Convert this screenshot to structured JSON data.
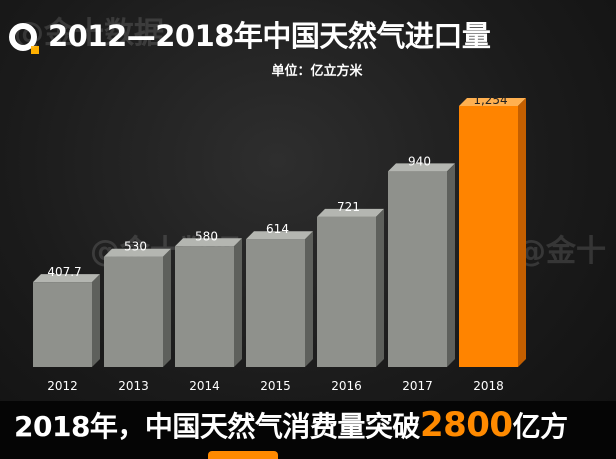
{
  "header": {
    "title": "2012—2018年中国天然气进口量",
    "unit": "单位：亿立方米"
  },
  "watermarks": [
    "@金十数据",
    "@金十数据",
    "@金十"
  ],
  "caption": {
    "prefix": "2018年，中国天然气消费量突破",
    "highlight": "2800",
    "suffix": "亿方"
  },
  "colors": {
    "bar_gray": "#8f918c",
    "bar_highlight": "#ff8400",
    "caption_highlight": "#ff8a00",
    "logo_accent": "#ffb000"
  },
  "chart_data": {
    "type": "bar",
    "title": "2012—2018年中国天然气进口量",
    "ylabel": "单位：亿立方米",
    "categories": [
      "2012",
      "2013",
      "2014",
      "2015",
      "2016",
      "2017",
      "2018"
    ],
    "values": [
      407.7,
      530,
      580,
      614,
      721,
      940,
      1254
    ],
    "value_labels": [
      "407.7",
      "530",
      "580",
      "614",
      "721",
      "940",
      "1,254"
    ],
    "highlight_index": 6,
    "ylim": [
      0,
      1300
    ],
    "grid": false,
    "legend": "none"
  }
}
